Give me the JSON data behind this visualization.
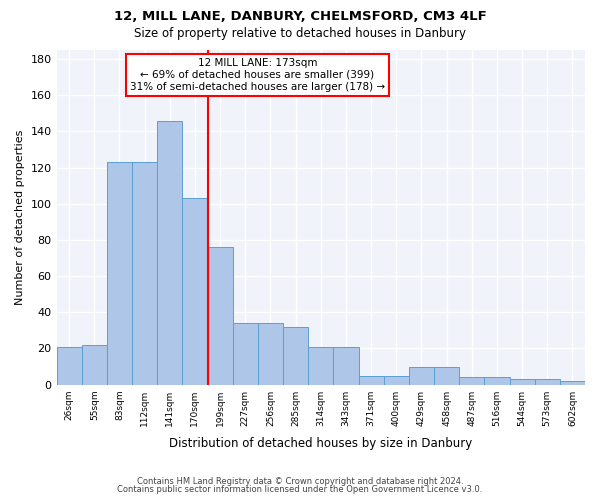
{
  "title": "12, MILL LANE, DANBURY, CHELMSFORD, CM3 4LF",
  "subtitle": "Size of property relative to detached houses in Danbury",
  "xlabel": "Distribution of detached houses by size in Danbury",
  "ylabel": "Number of detached properties",
  "bar_color": "#aec6e8",
  "bar_edge_color": "#5a9fd4",
  "bg_color": "#f0f4fa",
  "grid_color": "white",
  "categories": [
    "26sqm",
    "55sqm",
    "83sqm",
    "112sqm",
    "141sqm",
    "170sqm",
    "199sqm",
    "227sqm",
    "256sqm",
    "285sqm",
    "314sqm",
    "343sqm",
    "371sqm",
    "400sqm",
    "429sqm",
    "458sqm",
    "487sqm",
    "516sqm",
    "544sqm",
    "573sqm",
    "602sqm"
  ],
  "bars": [
    21,
    22,
    123,
    123,
    146,
    103,
    76,
    34,
    34,
    32,
    21,
    21,
    5,
    5,
    10,
    10,
    4,
    4,
    3,
    3,
    2
  ],
  "property_label": "12 MILL LANE: 173sqm",
  "annotation_line1": "← 69% of detached houses are smaller (399)",
  "annotation_line2": "31% of semi-detached houses are larger (178) →",
  "vline_x": 5.5,
  "ylim": [
    0,
    185
  ],
  "yticks": [
    0,
    20,
    40,
    60,
    80,
    100,
    120,
    140,
    160,
    180
  ],
  "footer1": "Contains HM Land Registry data © Crown copyright and database right 2024.",
  "footer2": "Contains public sector information licensed under the Open Government Licence v3.0."
}
